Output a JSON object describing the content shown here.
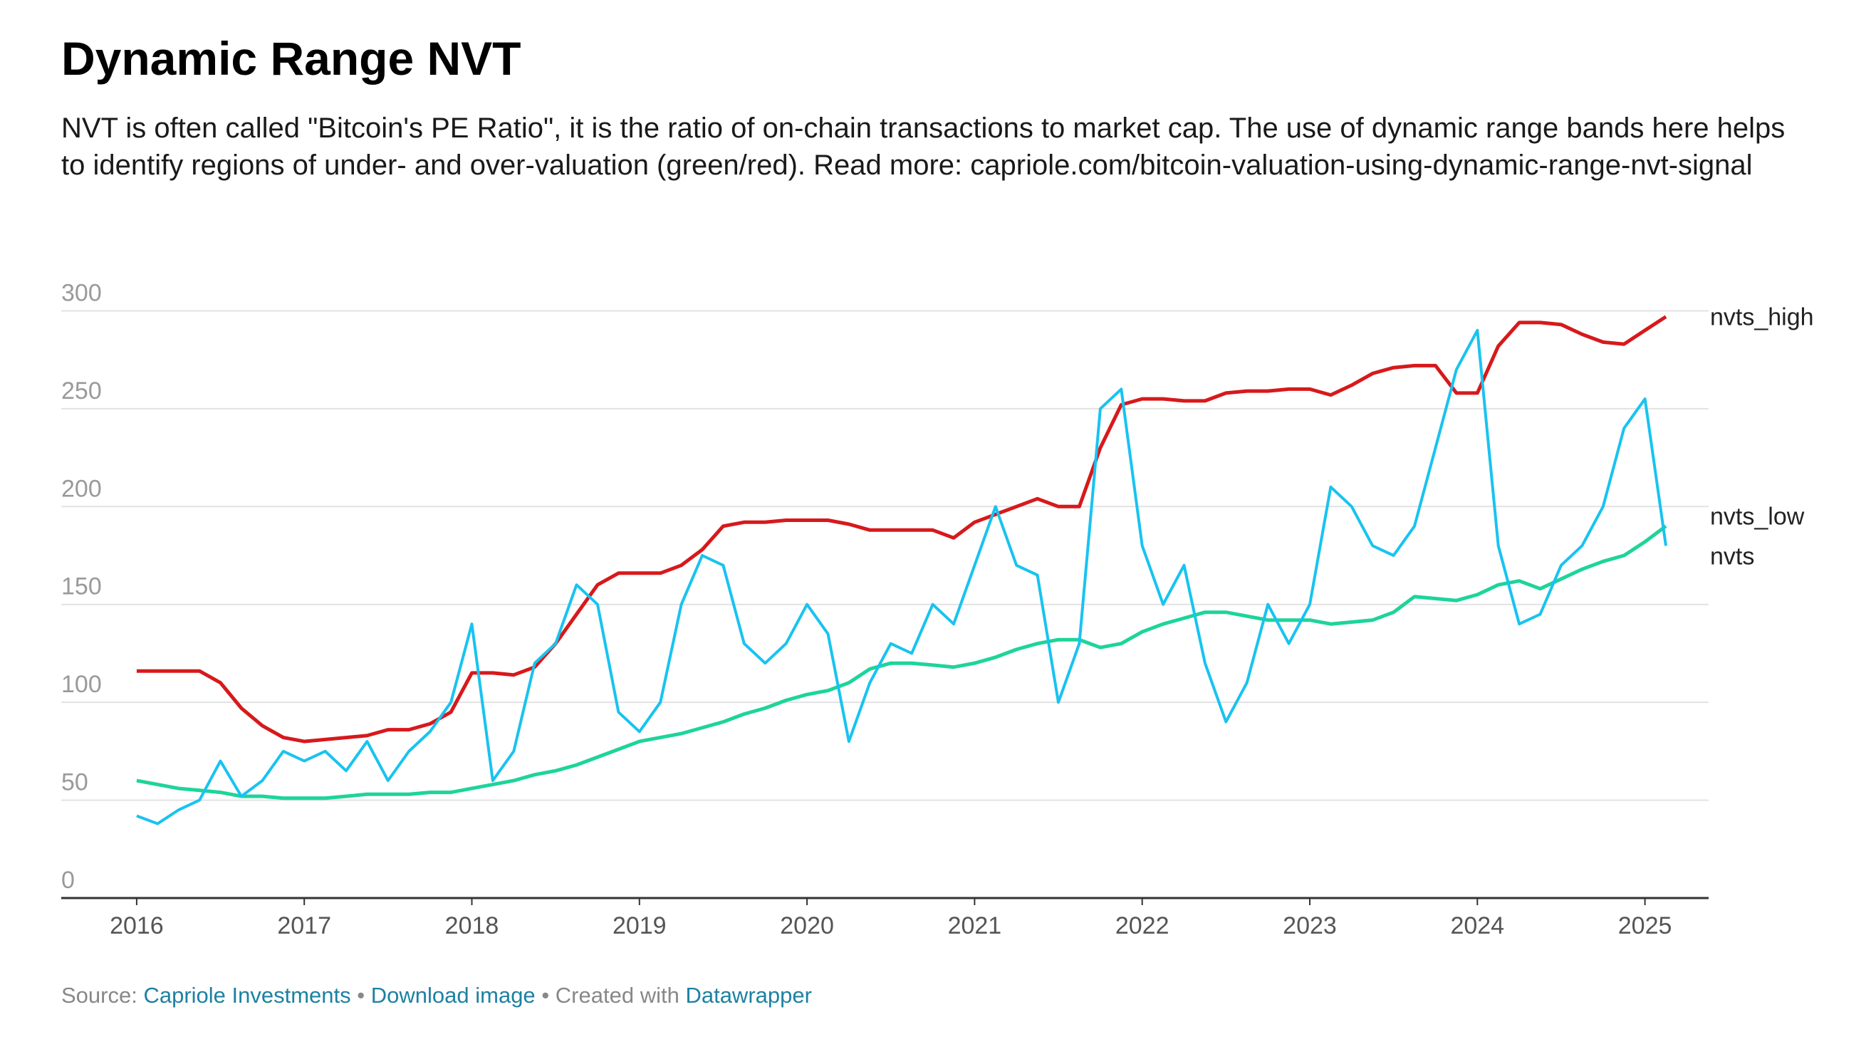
{
  "chart_data": {
    "type": "line",
    "title": "Dynamic Range NVT",
    "subtitle": "NVT is often called \"Bitcoin's PE Ratio\", it is the ratio of on-chain transactions to market cap. The use of dynamic range bands here helps to identify regions of under- and over-valuation (green/red). Read more: capriole.com/bitcoin-valuation-using-dynamic-range-nvt-signal",
    "x": [
      2016,
      2016.125,
      2016.25,
      2016.375,
      2016.5,
      2016.625,
      2016.75,
      2016.875,
      2017,
      2017.125,
      2017.25,
      2017.375,
      2017.5,
      2017.625,
      2017.75,
      2017.875,
      2018,
      2018.125,
      2018.25,
      2018.375,
      2018.5,
      2018.625,
      2018.75,
      2018.875,
      2019,
      2019.125,
      2019.25,
      2019.375,
      2019.5,
      2019.625,
      2019.75,
      2019.875,
      2020,
      2020.125,
      2020.25,
      2020.375,
      2020.5,
      2020.625,
      2020.75,
      2020.875,
      2021,
      2021.125,
      2021.25,
      2021.375,
      2021.5,
      2021.625,
      2021.75,
      2021.875,
      2022,
      2022.125,
      2022.25,
      2022.375,
      2022.5,
      2022.625,
      2022.75,
      2022.875,
      2023,
      2023.125,
      2023.25,
      2023.375,
      2023.5,
      2023.625,
      2023.75,
      2023.875,
      2024,
      2024.125,
      2024.25,
      2024.375,
      2024.5,
      2024.625,
      2024.75,
      2024.875,
      2025,
      2025.125
    ],
    "series": [
      {
        "name": "nvts_high",
        "color": "#d7191c",
        "values": [
          116,
          116,
          116,
          116,
          110,
          97,
          88,
          82,
          80,
          81,
          82,
          83,
          86,
          86,
          89,
          95,
          115,
          115,
          114,
          118,
          130,
          145,
          160,
          166,
          166,
          166,
          170,
          178,
          190,
          192,
          192,
          193,
          193,
          193,
          191,
          188,
          188,
          188,
          188,
          184,
          192,
          196,
          200,
          204,
          200,
          200,
          230,
          252,
          255,
          255,
          254,
          254,
          258,
          259,
          259,
          260,
          260,
          257,
          262,
          268,
          271,
          272,
          272,
          258,
          258,
          282,
          294,
          294,
          293,
          288,
          284,
          283,
          290,
          297
        ]
      },
      {
        "name": "nvts_low",
        "color": "#1ed49a",
        "values": [
          60,
          58,
          56,
          55,
          54,
          52,
          52,
          51,
          51,
          51,
          52,
          53,
          53,
          53,
          54,
          54,
          56,
          58,
          60,
          63,
          65,
          68,
          72,
          76,
          80,
          82,
          84,
          87,
          90,
          94,
          97,
          101,
          104,
          106,
          110,
          117,
          120,
          120,
          119,
          118,
          120,
          123,
          127,
          130,
          132,
          132,
          128,
          130,
          136,
          140,
          143,
          146,
          146,
          144,
          142,
          142,
          142,
          140,
          141,
          142,
          146,
          154,
          153,
          152,
          155,
          160,
          162,
          158,
          163,
          168,
          172,
          175,
          182,
          190
        ]
      },
      {
        "name": "nvts",
        "color": "#18c3f0",
        "values": [
          42,
          38,
          45,
          50,
          70,
          52,
          60,
          75,
          70,
          75,
          65,
          80,
          60,
          75,
          85,
          100,
          140,
          60,
          75,
          120,
          130,
          160,
          150,
          95,
          85,
          100,
          150,
          175,
          170,
          130,
          120,
          130,
          150,
          135,
          80,
          110,
          130,
          125,
          150,
          140,
          170,
          200,
          170,
          165,
          100,
          130,
          250,
          260,
          180,
          150,
          170,
          120,
          90,
          110,
          150,
          130,
          150,
          210,
          200,
          180,
          175,
          190,
          230,
          270,
          290,
          180,
          140,
          145,
          170,
          180,
          200,
          240,
          255,
          180
        ]
      }
    ],
    "xlim": [
      2015.55,
      2025.38
    ],
    "xticks": [
      2016,
      2017,
      2018,
      2019,
      2020,
      2021,
      2022,
      2023,
      2024,
      2025
    ],
    "ylim": [
      0,
      330
    ],
    "yticks": [
      0,
      50,
      100,
      150,
      200,
      250,
      300
    ],
    "grid": true
  },
  "footer": {
    "source_label": "Source:",
    "source": "Capriole Investments",
    "separator": "•",
    "download": "Download image",
    "created": "Created with",
    "tool": "Datawrapper"
  }
}
